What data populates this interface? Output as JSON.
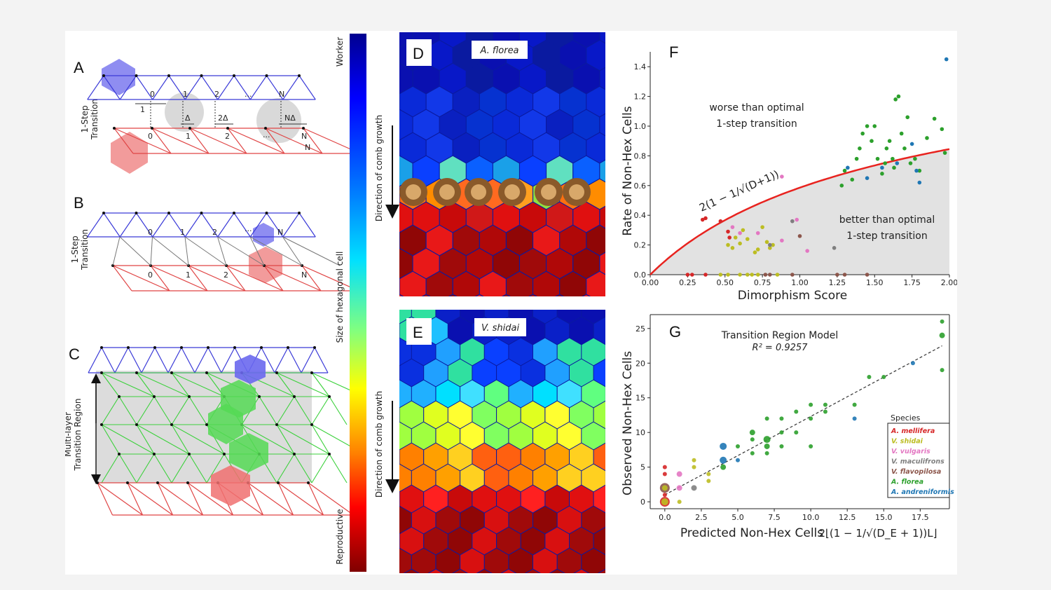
{
  "panels": {
    "A": {
      "letter": "A",
      "side_label": [
        "1-Step",
        "Transition"
      ],
      "top_indices": [
        "0",
        "1",
        "2",
        "...",
        "N"
      ],
      "bottom_indices": [
        "0",
        "1",
        "2",
        "...",
        "N"
      ],
      "dims": [
        "1",
        "Δ",
        "2Δ",
        "NΔ"
      ],
      "extra_N": "N"
    },
    "B": {
      "letter": "B",
      "side_label": [
        "1-Step",
        "Transition"
      ],
      "top_indices": [
        "0",
        "1",
        "2",
        "...",
        "N"
      ],
      "bottom_indices": [
        "0",
        "1",
        "2",
        "N"
      ]
    },
    "C": {
      "letter": "C",
      "side_label": [
        "Multi-layer",
        "Transition Region"
      ]
    },
    "colorbar": {
      "top": "Worker",
      "middle": "Size of hexagonal cell",
      "bottom": "Reproductive"
    },
    "D": {
      "letter": "D",
      "species": "A. florea",
      "arrow_label": "Direction of comb growth"
    },
    "E": {
      "letter": "E",
      "species": "V. shidai",
      "arrow_label": "Direction of comb growth"
    }
  },
  "chart_data": [
    {
      "panel": "F",
      "type": "scatter",
      "ylabel": "Rate of Non-Hex Cells",
      "xlabel": "Dimorphism Score",
      "xlim": [
        0,
        2.0
      ],
      "ylim": [
        0,
        1.5
      ],
      "xticks": [
        "0.00",
        "0.25",
        "0.50",
        "0.75",
        "1.00",
        "1.25",
        "1.50",
        "1.75",
        "2.00"
      ],
      "yticks": [
        "0.0",
        "0.2",
        "0.4",
        "0.6",
        "0.8",
        "1.0",
        "1.2",
        "1.4"
      ],
      "annotations": {
        "worse": [
          "worse than optimal",
          "1-step transition"
        ],
        "better": [
          "better than optimal",
          "1-step transition"
        ],
        "formula": "2(1 − 1/√(D+1))"
      },
      "curve_color": "#e8231f",
      "points": [
        {
          "x": 0.35,
          "y": 0.37,
          "c": "#d62728"
        },
        {
          "x": 0.37,
          "y": 0.38,
          "c": "#d62728"
        },
        {
          "x": 0.47,
          "y": 0.36,
          "c": "#d62728"
        },
        {
          "x": 0.52,
          "y": 0.29,
          "c": "#d62728"
        },
        {
          "x": 0.53,
          "y": 0.25,
          "c": "#d62728"
        },
        {
          "x": 0.25,
          "y": 0.0,
          "c": "#d62728"
        },
        {
          "x": 0.28,
          "y": 0.0,
          "c": "#d62728"
        },
        {
          "x": 0.37,
          "y": 0.0,
          "c": "#d62728"
        },
        {
          "x": 0.47,
          "y": 0.0,
          "c": "#bcbd22"
        },
        {
          "x": 0.52,
          "y": 0.0,
          "c": "#bcbd22"
        },
        {
          "x": 0.6,
          "y": 0.0,
          "c": "#bcbd22"
        },
        {
          "x": 0.68,
          "y": 0.0,
          "c": "#bcbd22"
        },
        {
          "x": 0.72,
          "y": 0.0,
          "c": "#bcbd22"
        },
        {
          "x": 0.77,
          "y": 0.0,
          "c": "#8c564b"
        },
        {
          "x": 0.8,
          "y": 0.0,
          "c": "#8c564b"
        },
        {
          "x": 0.85,
          "y": 0.0,
          "c": "#bcbd22"
        },
        {
          "x": 0.95,
          "y": 0.0,
          "c": "#8c564b"
        },
        {
          "x": 0.65,
          "y": 0.0,
          "c": "#bcbd22"
        },
        {
          "x": 0.52,
          "y": 0.2,
          "c": "#bcbd22"
        },
        {
          "x": 0.55,
          "y": 0.18,
          "c": "#bcbd22"
        },
        {
          "x": 0.57,
          "y": 0.25,
          "c": "#bcbd22"
        },
        {
          "x": 0.6,
          "y": 0.21,
          "c": "#bcbd22"
        },
        {
          "x": 0.62,
          "y": 0.3,
          "c": "#bcbd22"
        },
        {
          "x": 0.65,
          "y": 0.24,
          "c": "#bcbd22"
        },
        {
          "x": 0.7,
          "y": 0.15,
          "c": "#bcbd22"
        },
        {
          "x": 0.72,
          "y": 0.17,
          "c": "#bcbd22"
        },
        {
          "x": 0.75,
          "y": 0.32,
          "c": "#bcbd22"
        },
        {
          "x": 0.78,
          "y": 0.22,
          "c": "#bcbd22"
        },
        {
          "x": 0.8,
          "y": 0.18,
          "c": "#bcbd22"
        },
        {
          "x": 0.82,
          "y": 0.2,
          "c": "#bcbd22"
        },
        {
          "x": 0.55,
          "y": 0.32,
          "c": "#e377c2"
        },
        {
          "x": 0.6,
          "y": 0.28,
          "c": "#e377c2"
        },
        {
          "x": 0.72,
          "y": 0.28,
          "c": "#e377c2"
        },
        {
          "x": 0.88,
          "y": 0.23,
          "c": "#e377c2"
        },
        {
          "x": 0.95,
          "y": 0.36,
          "c": "#e377c2"
        },
        {
          "x": 0.98,
          "y": 0.37,
          "c": "#e377c2"
        },
        {
          "x": 1.05,
          "y": 0.16,
          "c": "#e377c2"
        },
        {
          "x": 0.88,
          "y": 0.66,
          "c": "#e377c2"
        },
        {
          "x": 0.8,
          "y": 0.2,
          "c": "#7f7f7f"
        },
        {
          "x": 0.95,
          "y": 0.36,
          "c": "#7f7f7f"
        },
        {
          "x": 1.23,
          "y": 0.18,
          "c": "#7f7f7f"
        },
        {
          "x": 1.0,
          "y": 0.26,
          "c": "#8c564b"
        },
        {
          "x": 1.25,
          "y": 0.0,
          "c": "#8c564b"
        },
        {
          "x": 1.3,
          "y": 0.0,
          "c": "#8c564b"
        },
        {
          "x": 1.45,
          "y": 0.0,
          "c": "#8c564b"
        },
        {
          "x": 1.28,
          "y": 0.6,
          "c": "#2ca02c"
        },
        {
          "x": 1.3,
          "y": 0.7,
          "c": "#2ca02c"
        },
        {
          "x": 1.35,
          "y": 0.64,
          "c": "#2ca02c"
        },
        {
          "x": 1.38,
          "y": 0.78,
          "c": "#2ca02c"
        },
        {
          "x": 1.4,
          "y": 0.85,
          "c": "#2ca02c"
        },
        {
          "x": 1.42,
          "y": 0.95,
          "c": "#2ca02c"
        },
        {
          "x": 1.45,
          "y": 1.0,
          "c": "#2ca02c"
        },
        {
          "x": 1.48,
          "y": 0.9,
          "c": "#2ca02c"
        },
        {
          "x": 1.5,
          "y": 1.0,
          "c": "#2ca02c"
        },
        {
          "x": 1.52,
          "y": 0.78,
          "c": "#2ca02c"
        },
        {
          "x": 1.55,
          "y": 0.68,
          "c": "#2ca02c"
        },
        {
          "x": 1.57,
          "y": 0.75,
          "c": "#2ca02c"
        },
        {
          "x": 1.6,
          "y": 0.9,
          "c": "#2ca02c"
        },
        {
          "x": 1.62,
          "y": 0.78,
          "c": "#2ca02c"
        },
        {
          "x": 1.64,
          "y": 1.18,
          "c": "#2ca02c"
        },
        {
          "x": 1.66,
          "y": 1.2,
          "c": "#2ca02c"
        },
        {
          "x": 1.68,
          "y": 0.95,
          "c": "#2ca02c"
        },
        {
          "x": 1.7,
          "y": 0.85,
          "c": "#2ca02c"
        },
        {
          "x": 1.72,
          "y": 1.06,
          "c": "#2ca02c"
        },
        {
          "x": 1.74,
          "y": 0.75,
          "c": "#2ca02c"
        },
        {
          "x": 1.77,
          "y": 0.78,
          "c": "#2ca02c"
        },
        {
          "x": 1.8,
          "y": 0.7,
          "c": "#2ca02c"
        },
        {
          "x": 1.85,
          "y": 0.92,
          "c": "#2ca02c"
        },
        {
          "x": 1.9,
          "y": 1.05,
          "c": "#2ca02c"
        },
        {
          "x": 1.95,
          "y": 0.98,
          "c": "#2ca02c"
        },
        {
          "x": 1.97,
          "y": 0.82,
          "c": "#2ca02c"
        },
        {
          "x": 1.63,
          "y": 0.72,
          "c": "#2ca02c"
        },
        {
          "x": 1.58,
          "y": 0.85,
          "c": "#2ca02c"
        },
        {
          "x": 1.32,
          "y": 0.72,
          "c": "#1f77b4"
        },
        {
          "x": 1.45,
          "y": 0.65,
          "c": "#1f77b4"
        },
        {
          "x": 1.55,
          "y": 0.72,
          "c": "#1f77b4"
        },
        {
          "x": 1.65,
          "y": 0.75,
          "c": "#1f77b4"
        },
        {
          "x": 1.75,
          "y": 0.88,
          "c": "#1f77b4"
        },
        {
          "x": 1.78,
          "y": 0.7,
          "c": "#1f77b4"
        },
        {
          "x": 1.8,
          "y": 0.62,
          "c": "#1f77b4"
        },
        {
          "x": 1.98,
          "y": 1.45,
          "c": "#1f77b4"
        }
      ]
    },
    {
      "panel": "G",
      "type": "scatter",
      "title": [
        "Transition Region Model",
        "R² = 0.9257"
      ],
      "ylabel": "Observed Non-Hex Cells",
      "xlabel": "Predicted Non-Hex Cells",
      "xlabel_formula": "2⌊(1 − 1/√(D_E + 1))L⌋",
      "xlim": [
        -1,
        19.5
      ],
      "ylim": [
        -1,
        27
      ],
      "xticks": [
        "0.0",
        "2.5",
        "5.0",
        "7.5",
        "10.0",
        "12.5",
        "15.0",
        "17.5"
      ],
      "yticks": [
        "0",
        "5",
        "10",
        "15",
        "20",
        "25"
      ],
      "legend": {
        "title": "Species",
        "items": [
          {
            "name": "A. mellifera",
            "color": "#d62728"
          },
          {
            "name": "V. shidai",
            "color": "#bcbd22"
          },
          {
            "name": "V. vulgaris",
            "color": "#e377c2"
          },
          {
            "name": "V. maculifrons",
            "color": "#7f7f7f"
          },
          {
            "name": "V. flavopilosa",
            "color": "#8c564b"
          },
          {
            "name": "A. florea",
            "color": "#2ca02c"
          },
          {
            "name": "A. andreniformis",
            "color": "#1f77b4"
          }
        ]
      },
      "points": [
        {
          "x": 0,
          "y": 0,
          "c": "#d62728",
          "s": 7
        },
        {
          "x": 0,
          "y": 0,
          "c": "#bcbd22",
          "s": 5
        },
        {
          "x": 0,
          "y": 1,
          "c": "#d62728",
          "s": 3
        },
        {
          "x": 0,
          "y": 2,
          "c": "#8c564b",
          "s": 7
        },
        {
          "x": 0,
          "y": 2,
          "c": "#bcbd22",
          "s": 4
        },
        {
          "x": 0,
          "y": 4,
          "c": "#d62728",
          "s": 3
        },
        {
          "x": 0,
          "y": 5,
          "c": "#d62728",
          "s": 3
        },
        {
          "x": 1,
          "y": 0,
          "c": "#bcbd22",
          "s": 3
        },
        {
          "x": 1,
          "y": 2,
          "c": "#e377c2",
          "s": 4
        },
        {
          "x": 1,
          "y": 4,
          "c": "#e377c2",
          "s": 4
        },
        {
          "x": 2,
          "y": 2,
          "c": "#7f7f7f",
          "s": 4
        },
        {
          "x": 2,
          "y": 5,
          "c": "#bcbd22",
          "s": 3
        },
        {
          "x": 2,
          "y": 6,
          "c": "#bcbd22",
          "s": 3
        },
        {
          "x": 3,
          "y": 3,
          "c": "#bcbd22",
          "s": 3
        },
        {
          "x": 3,
          "y": 4,
          "c": "#bcbd22",
          "s": 3
        },
        {
          "x": 4,
          "y": 5,
          "c": "#2ca02c",
          "s": 4
        },
        {
          "x": 4,
          "y": 6,
          "c": "#1f77b4",
          "s": 5
        },
        {
          "x": 4,
          "y": 8,
          "c": "#1f77b4",
          "s": 5
        },
        {
          "x": 5,
          "y": 6,
          "c": "#1f77b4",
          "s": 3
        },
        {
          "x": 5,
          "y": 8,
          "c": "#2ca02c",
          "s": 3
        },
        {
          "x": 6,
          "y": 7,
          "c": "#2ca02c",
          "s": 3
        },
        {
          "x": 6,
          "y": 9,
          "c": "#2ca02c",
          "s": 3
        },
        {
          "x": 6,
          "y": 10,
          "c": "#2ca02c",
          "s": 4
        },
        {
          "x": 7,
          "y": 7,
          "c": "#2ca02c",
          "s": 3
        },
        {
          "x": 7,
          "y": 8,
          "c": "#2ca02c",
          "s": 4
        },
        {
          "x": 7,
          "y": 9,
          "c": "#2ca02c",
          "s": 5
        },
        {
          "x": 7,
          "y": 12,
          "c": "#2ca02c",
          "s": 3
        },
        {
          "x": 8,
          "y": 8,
          "c": "#2ca02c",
          "s": 3
        },
        {
          "x": 8,
          "y": 10,
          "c": "#2ca02c",
          "s": 3
        },
        {
          "x": 8,
          "y": 12,
          "c": "#2ca02c",
          "s": 3
        },
        {
          "x": 9,
          "y": 10,
          "c": "#2ca02c",
          "s": 3
        },
        {
          "x": 9,
          "y": 13,
          "c": "#2ca02c",
          "s": 3
        },
        {
          "x": 10,
          "y": 8,
          "c": "#2ca02c",
          "s": 3
        },
        {
          "x": 10,
          "y": 12,
          "c": "#2ca02c",
          "s": 3
        },
        {
          "x": 10,
          "y": 14,
          "c": "#2ca02c",
          "s": 3
        },
        {
          "x": 11,
          "y": 13,
          "c": "#2ca02c",
          "s": 3
        },
        {
          "x": 11,
          "y": 14,
          "c": "#2ca02c",
          "s": 3
        },
        {
          "x": 13,
          "y": 12,
          "c": "#1f77b4",
          "s": 3
        },
        {
          "x": 13,
          "y": 14,
          "c": "#2ca02c",
          "s": 3
        },
        {
          "x": 14,
          "y": 18,
          "c": "#2ca02c",
          "s": 3
        },
        {
          "x": 15,
          "y": 18,
          "c": "#2ca02c",
          "s": 3
        },
        {
          "x": 17,
          "y": 20,
          "c": "#1f77b4",
          "s": 3
        },
        {
          "x": 19,
          "y": 19,
          "c": "#2ca02c",
          "s": 3
        },
        {
          "x": 19,
          "y": 24,
          "c": "#2ca02c",
          "s": 4
        },
        {
          "x": 19,
          "y": 26,
          "c": "#2ca02c",
          "s": 3
        }
      ],
      "fit_line": {
        "x0": 0,
        "y0": 1,
        "x1": 19,
        "y1": 22.5
      }
    }
  ]
}
